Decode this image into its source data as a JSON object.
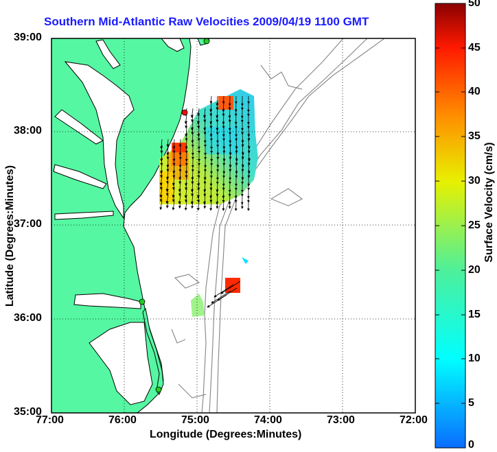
{
  "title": "Southern Mid-Atlantic Raw Velocities 2009/04/19 1100 GMT",
  "colors": {
    "land": "#55f7a2",
    "water": "#ffffff",
    "coast": "#000000",
    "bathymetry": "#8c8c8c",
    "title": "#1a1aff",
    "station_green": "#22cc22",
    "station_red": "#ee1111"
  },
  "chart_data": {
    "type": "heatmap",
    "xlabel": "Longitude (Degrees:Minutes)",
    "ylabel": "Latitude (Degrees:Minutes)",
    "xlim": [
      -77,
      -72
    ],
    "ylim": [
      35,
      39
    ],
    "x_ticks": [
      "77:00",
      "76:00",
      "75:00",
      "74:00",
      "73:00",
      "72:00"
    ],
    "y_ticks": [
      "39:00",
      "38:00",
      "37:00",
      "36:00",
      "35:00"
    ],
    "grid": true,
    "colorbar": {
      "label": "Surface Velocity (cm/s)",
      "range": [
        0,
        50
      ],
      "ticks": [
        "50",
        "45",
        "40",
        "35",
        "30",
        "25",
        "20",
        "15",
        "10",
        "5",
        "0"
      ]
    },
    "stations": [
      {
        "lon": -75.15,
        "lat": 38.97,
        "color": "green"
      },
      {
        "lon": -75.1,
        "lat": 38.2,
        "color": "red"
      },
      {
        "lon": -75.75,
        "lat": 36.18,
        "color": "green"
      },
      {
        "lon": -75.5,
        "lat": 35.27,
        "color": "green"
      }
    ]
  }
}
